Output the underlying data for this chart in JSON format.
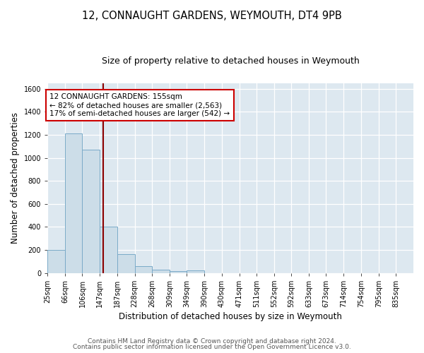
{
  "title": "12, CONNAUGHT GARDENS, WEYMOUTH, DT4 9PB",
  "subtitle": "Size of property relative to detached houses in Weymouth",
  "bar_edges": [
    25,
    66,
    106,
    147,
    187,
    228,
    268,
    309,
    349,
    390,
    430,
    471,
    511,
    552,
    592,
    633,
    673,
    714,
    754,
    795,
    835
  ],
  "bar_heights": [
    200,
    1210,
    1070,
    400,
    160,
    60,
    25,
    15,
    20,
    0,
    0,
    0,
    0,
    0,
    0,
    0,
    0,
    0,
    0,
    0
  ],
  "bar_color": "#ccdde8",
  "bar_edge_color": "#7aaac8",
  "property_line_x": 155,
  "property_line_color": "#8b0000",
  "annotation_text": "12 CONNAUGHT GARDENS: 155sqm\n← 82% of detached houses are smaller (2,563)\n17% of semi-detached houses are larger (542) →",
  "annotation_box_color": "#cc0000",
  "annotation_text_color": "#000000",
  "xlabel": "Distribution of detached houses by size in Weymouth",
  "ylabel": "Number of detached properties",
  "ylim": [
    0,
    1650
  ],
  "yticks": [
    0,
    200,
    400,
    600,
    800,
    1000,
    1200,
    1400,
    1600
  ],
  "footer_line1": "Contains HM Land Registry data © Crown copyright and database right 2024.",
  "footer_line2": "Contains public sector information licensed under the Open Government Licence v3.0.",
  "fig_bg_color": "#ffffff",
  "plot_bg_color": "#dde8f0",
  "grid_color": "#ffffff",
  "title_fontsize": 10.5,
  "subtitle_fontsize": 9,
  "axis_label_fontsize": 8.5,
  "tick_fontsize": 7,
  "footer_fontsize": 6.5
}
